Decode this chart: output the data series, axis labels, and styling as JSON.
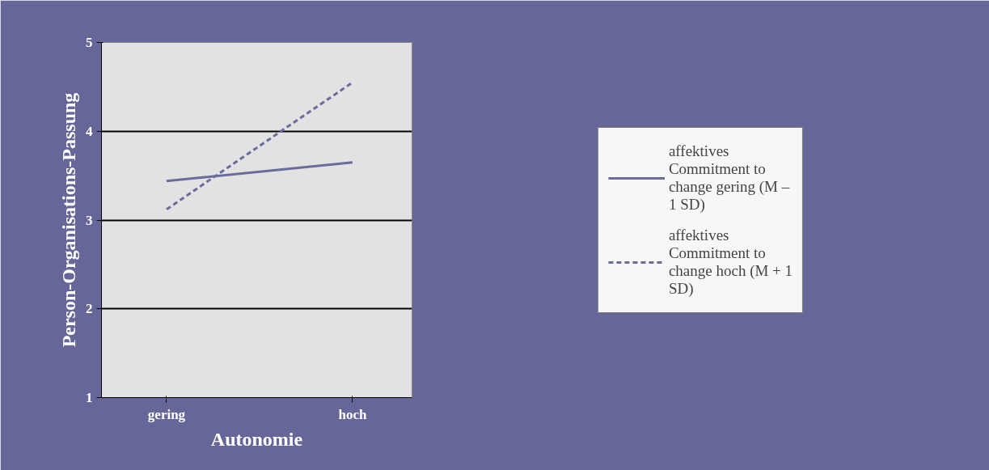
{
  "chart_data": {
    "type": "line",
    "xlabel": "Autonomie",
    "ylabel": "Person-Organisations-Passung",
    "categories": [
      "gering",
      "hoch"
    ],
    "series": [
      {
        "name": "affektives Commitment to change gering (M – 1 SD)",
        "color": "#6b6b9e",
        "values": [
          3.44,
          3.65
        ],
        "line_style": "solid"
      },
      {
        "name": "affektives Commitment to change hoch (M + 1 SD)",
        "color": "#6b6b9e",
        "values": [
          3.12,
          4.55
        ],
        "line_style": "dashed"
      }
    ],
    "ylim": [
      1,
      5
    ],
    "yticks": [
      1,
      2,
      3,
      4,
      5
    ],
    "grid": "y",
    "legend": "right",
    "marker": "none"
  }
}
